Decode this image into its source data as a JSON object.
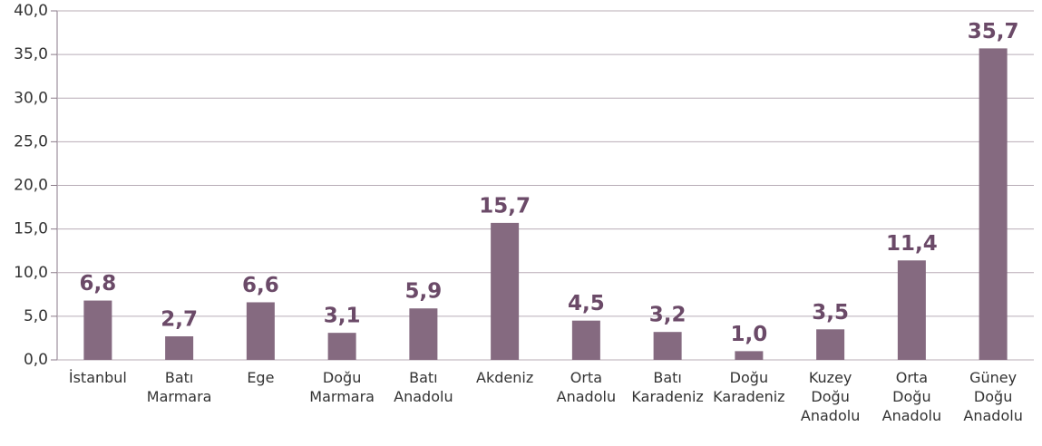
{
  "chart_data": {
    "type": "bar",
    "categories": [
      [
        "İstanbul"
      ],
      [
        "Batı",
        "Marmara"
      ],
      [
        "Ege"
      ],
      [
        "Doğu",
        "Marmara"
      ],
      [
        "Batı",
        "Anadolu"
      ],
      [
        "Akdeniz"
      ],
      [
        "Orta",
        "Anadolu"
      ],
      [
        "Batı",
        "Karadeniz"
      ],
      [
        "Doğu",
        "Karadeniz"
      ],
      [
        "Kuzey",
        "Doğu",
        "Anadolu"
      ],
      [
        "Orta",
        "Doğu",
        "Anadolu"
      ],
      [
        "Güney",
        "Doğu",
        "Anadolu"
      ]
    ],
    "values": [
      6.8,
      2.7,
      6.6,
      3.1,
      5.9,
      15.7,
      4.5,
      3.2,
      1.0,
      3.5,
      11.4,
      35.7
    ],
    "value_labels": [
      "6,8",
      "2,7",
      "6,6",
      "3,1",
      "5,9",
      "15,7",
      "4,5",
      "3,2",
      "1,0",
      "3,5",
      "11,4",
      "35,7"
    ],
    "color": "#856a80",
    "ylim": [
      0,
      40
    ],
    "yticks": [
      {
        "value": 0,
        "label": "0,0"
      },
      {
        "value": 5,
        "label": "5,0"
      },
      {
        "value": 10,
        "label": "10,0"
      },
      {
        "value": 15,
        "label": "15,0"
      },
      {
        "value": 20,
        "label": "20,0"
      },
      {
        "value": 25,
        "label": "25,0"
      },
      {
        "value": 30,
        "label": "30,0"
      },
      {
        "value": 35,
        "label": "35,0"
      },
      {
        "value": 40,
        "label": "40,0"
      }
    ],
    "grid": true
  }
}
